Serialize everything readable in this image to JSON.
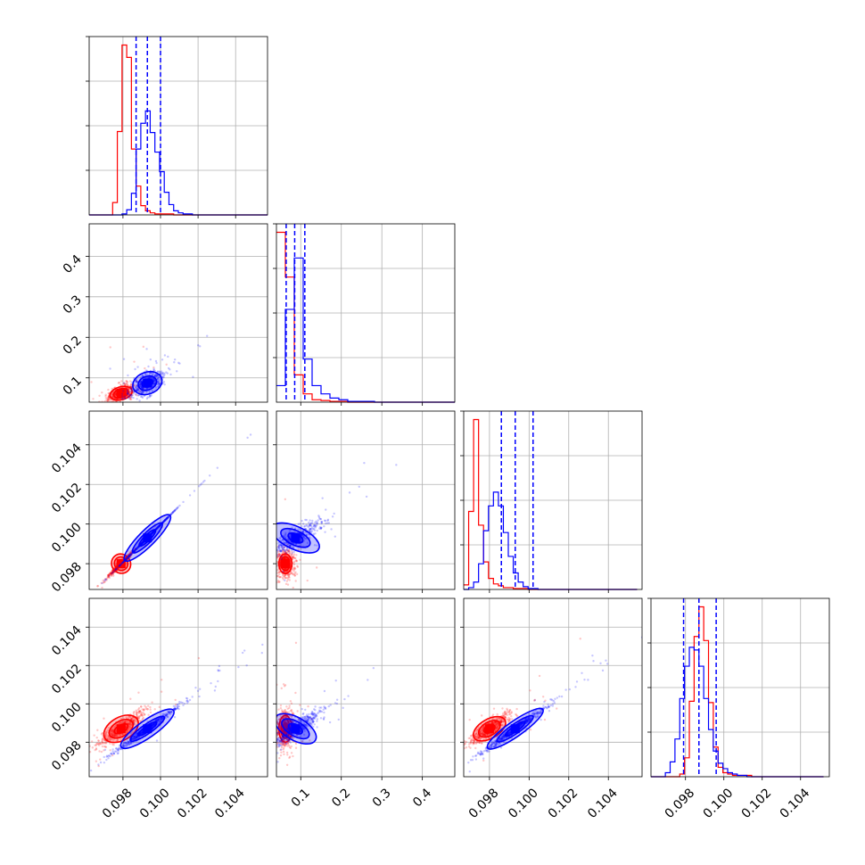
{
  "chart_data": {
    "type": "corner",
    "grid": true,
    "colors": {
      "series_red": "#ff0000",
      "series_blue": "#0000ff",
      "grid": "#b0b0b0",
      "axes": "#000000"
    },
    "series": [
      {
        "color_key": "series_red"
      },
      {
        "color_key": "series_blue"
      }
    ],
    "params": [
      {
        "xlim": [
          0.0962,
          0.1057
        ],
        "xticks": [
          "0.098",
          "0.100",
          "0.102",
          "0.104"
        ],
        "xtick_values": [
          0.098,
          0.1,
          0.102,
          0.104
        ]
      },
      {
        "xlim": [
          0.04,
          0.48
        ],
        "xticks": [
          "0.1",
          "0.2",
          "0.3",
          "0.4"
        ],
        "xtick_values": [
          0.1,
          0.2,
          0.3,
          0.4
        ]
      },
      {
        "xlim": [
          0.0967,
          0.1057
        ],
        "xticks": [
          "0.098",
          "0.100",
          "0.102",
          "0.104"
        ],
        "xtick_values": [
          0.098,
          0.1,
          0.102,
          0.104
        ]
      },
      {
        "xlim": [
          0.0962,
          0.1055
        ],
        "xticks": [
          "0.098",
          "0.100",
          "0.102",
          "0.104"
        ],
        "xtick_values": [
          0.098,
          0.1,
          0.102,
          0.104
        ]
      }
    ],
    "quantile_lines_blue": [
      [
        0.0987,
        0.0993,
        0.1
      ],
      [
        0.064,
        0.085,
        0.11
      ],
      [
        0.0986,
        0.0993,
        0.1002
      ],
      [
        0.0979,
        0.0987,
        0.0996
      ]
    ],
    "histograms": [
      {
        "param": 0,
        "bin_edges": [
          0.0962,
          0.09645,
          0.0967,
          0.09695,
          0.0972,
          0.09745,
          0.0977,
          0.09795,
          0.0982,
          0.09845,
          0.0987,
          0.09895,
          0.0992,
          0.09945,
          0.0997,
          0.09995,
          0.1002,
          0.10045,
          0.1007,
          0.10095,
          0.1012,
          0.10145,
          0.1017,
          0.10195,
          0.1022,
          0.10245,
          0.1027,
          0.10295,
          0.1032,
          0.10345,
          0.1037,
          0.10395,
          0.1042,
          0.10445,
          0.1047,
          0.10495,
          0.1052,
          0.10545,
          0.1057
        ],
        "red": [
          0,
          0,
          0,
          0,
          0,
          12,
          81,
          165,
          153,
          64,
          28,
          9,
          4,
          2,
          1,
          1,
          1,
          1,
          0,
          0,
          0,
          0,
          0,
          0,
          0,
          0,
          0,
          0,
          0,
          0,
          0,
          0,
          0,
          0,
          0,
          0,
          0,
          0
        ],
        "blue": [
          0,
          0,
          0,
          0,
          0,
          0,
          0,
          1,
          5,
          21,
          64,
          89,
          101,
          80,
          61,
          42,
          22,
          10,
          4,
          2,
          1,
          1,
          0,
          0,
          0,
          0,
          0,
          0,
          0,
          0,
          0,
          0,
          0,
          0,
          0,
          0,
          0,
          0
        ]
      },
      {
        "param": 1,
        "bin_edges": [
          0.04,
          0.062,
          0.084,
          0.106,
          0.128,
          0.15,
          0.172,
          0.194,
          0.216,
          0.238,
          0.26,
          0.282,
          0.304,
          0.326,
          0.348,
          0.37,
          0.392,
          0.414,
          0.436,
          0.458,
          0.48
        ],
        "red": [
          205,
          151,
          33,
          10,
          3,
          2,
          1,
          1,
          0,
          0,
          0,
          0,
          0,
          0,
          0,
          0,
          0,
          0,
          0,
          0
        ],
        "blue": [
          20,
          112,
          174,
          52,
          20,
          10,
          5,
          3,
          1,
          1,
          1,
          0,
          0,
          0,
          0,
          0,
          0,
          0,
          0,
          0
        ]
      },
      {
        "param": 2,
        "bin_edges": [
          0.0967,
          0.09695,
          0.0972,
          0.09745,
          0.0977,
          0.09795,
          0.0982,
          0.09845,
          0.0987,
          0.09895,
          0.0992,
          0.09945,
          0.0997,
          0.09995,
          0.1002,
          0.10045,
          0.1007,
          0.10095,
          0.1012,
          0.10145,
          0.1017,
          0.10195,
          0.1022,
          0.10245,
          0.1027,
          0.10295,
          0.1032,
          0.10345,
          0.1037,
          0.10395,
          0.1042,
          0.10445,
          0.1047,
          0.10495,
          0.1052,
          0.10545
        ],
        "red": [
          5,
          85,
          185,
          70,
          30,
          12,
          6,
          4,
          2,
          2,
          1,
          1,
          1,
          0,
          0,
          0,
          0,
          0,
          0,
          0,
          0,
          0,
          0,
          0,
          0,
          0,
          0,
          0,
          0,
          0,
          0,
          0,
          0,
          0,
          0
        ],
        "blue": [
          0,
          2,
          8,
          28,
          64,
          91,
          106,
          91,
          62,
          36,
          18,
          8,
          3,
          1,
          1,
          0,
          0,
          0,
          0,
          0,
          0,
          0,
          0,
          0,
          0,
          0,
          0,
          0,
          0,
          0,
          0,
          0,
          0,
          0,
          0
        ]
      },
      {
        "param": 3,
        "bin_edges": [
          0.0962,
          0.09645,
          0.0967,
          0.09695,
          0.0972,
          0.09745,
          0.0977,
          0.09795,
          0.0982,
          0.09845,
          0.0987,
          0.09895,
          0.0992,
          0.09945,
          0.0997,
          0.09995,
          0.1002,
          0.10045,
          0.1007,
          0.10095,
          0.1012,
          0.10145,
          0.1017,
          0.10195,
          0.1022,
          0.10245,
          0.1027,
          0.10295,
          0.1032,
          0.10345,
          0.1037,
          0.10395,
          0.1042,
          0.10445,
          0.1047,
          0.10495,
          0.1052
        ],
        "red": [
          0,
          0,
          0,
          0,
          0,
          0,
          2,
          14,
          56,
          104,
          126,
          101,
          55,
          22,
          7,
          3,
          2,
          1,
          1,
          1,
          1,
          0,
          0,
          0,
          0,
          0,
          0,
          0,
          0,
          0,
          0,
          0,
          0,
          0,
          0,
          0
        ],
        "blue": [
          0,
          0,
          0,
          3,
          11,
          28,
          58,
          82,
          96,
          94,
          82,
          58,
          35,
          19,
          10,
          6,
          3,
          2,
          1,
          1,
          0,
          0,
          0,
          0,
          0,
          0,
          0,
          0,
          0,
          0,
          0,
          0,
          0,
          0,
          0,
          0
        ]
      }
    ],
    "scatter_panels": [
      {
        "xparam": 0,
        "yparam": 1,
        "ylim": [
          0.04,
          0.48
        ],
        "yticks": [
          "0.1",
          "0.2",
          "0.3",
          "0.4"
        ],
        "ytick_values": [
          0.1,
          0.2,
          0.3,
          0.4
        ],
        "red_center": [
          0.0979,
          0.062
        ],
        "red_contours": [
          [
            0.0002,
            0.006
          ],
          [
            0.0004,
            0.011
          ],
          [
            0.0006,
            0.016
          ]
        ],
        "red_contour_angle": 15,
        "blue_center": [
          0.0993,
          0.087
        ],
        "blue_contours": [
          [
            0.0003,
            0.009
          ],
          [
            0.0005,
            0.017
          ],
          [
            0.0008,
            0.027
          ]
        ],
        "blue_contour_angle": 20
      },
      {
        "xparam": 0,
        "yparam": 2,
        "ylim": [
          0.0967,
          0.1057
        ],
        "yticks": [
          "0.098",
          "0.100",
          "0.102",
          "0.104"
        ],
        "ytick_values": [
          0.098,
          0.1,
          0.102,
          0.104
        ],
        "red_center": [
          0.0979,
          0.098
        ],
        "red_contours": [
          [
            0.0002,
            0.0002
          ],
          [
            0.00035,
            0.00035
          ],
          [
            0.0005,
            0.0005
          ]
        ],
        "red_contour_angle": 40,
        "blue_center": [
          0.0993,
          0.0993
        ],
        "blue_contours": [
          [
            0.0006,
            0.00015
          ],
          [
            0.0011,
            0.00025
          ],
          [
            0.0017,
            0.0004
          ]
        ],
        "blue_contour_angle": 45
      },
      {
        "xparam": 0,
        "yparam": 3,
        "ylim": [
          0.0962,
          0.1055
        ],
        "yticks": [
          "0.098",
          "0.100",
          "0.102",
          "0.104"
        ],
        "ytick_values": [
          0.098,
          0.1,
          0.102,
          0.104
        ],
        "red_center": [
          0.0979,
          0.0987
        ],
        "red_contours": [
          [
            0.0004,
            0.0002
          ],
          [
            0.0007,
            0.0004
          ],
          [
            0.001,
            0.0006
          ]
        ],
        "red_contour_angle": 30,
        "blue_center": [
          0.0993,
          0.0987
        ],
        "blue_contours": [
          [
            0.0006,
            0.00015
          ],
          [
            0.0011,
            0.00025
          ],
          [
            0.0017,
            0.00045
          ]
        ],
        "blue_contour_angle": 35
      },
      {
        "xparam": 1,
        "yparam": 2,
        "ylim": [
          0.0967,
          0.1057
        ],
        "yticks": [],
        "ytick_values": [],
        "red_center": [
          0.062,
          0.098
        ],
        "red_contours": [
          [
            0.006,
            0.0002
          ],
          [
            0.011,
            0.00035
          ],
          [
            0.016,
            0.0005
          ]
        ],
        "red_contour_angle": 0,
        "blue_center": [
          0.087,
          0.0993
        ],
        "blue_contours": [
          [
            0.01,
            0.0004
          ],
          [
            0.018,
            0.0008
          ],
          [
            0.028,
            0.0013
          ]
        ],
        "blue_contour_angle": 65
      },
      {
        "xparam": 1,
        "yparam": 3,
        "ylim": [
          0.0962,
          0.1055
        ],
        "yticks": [],
        "ytick_values": [],
        "red_center": [
          0.062,
          0.0987
        ],
        "red_contours": [
          [
            0.006,
            0.0003
          ],
          [
            0.011,
            0.0005
          ],
          [
            0.016,
            0.0007
          ]
        ],
        "red_contour_angle": 0,
        "blue_center": [
          0.087,
          0.0987
        ],
        "blue_contours": [
          [
            0.01,
            0.0004
          ],
          [
            0.018,
            0.0008
          ],
          [
            0.028,
            0.0012
          ]
        ],
        "blue_contour_angle": 60
      },
      {
        "xparam": 2,
        "yparam": 3,
        "ylim": [
          0.0962,
          0.1055
        ],
        "yticks": [],
        "ytick_values": [],
        "red_center": [
          0.098,
          0.0987
        ],
        "red_contours": [
          [
            0.0003,
            0.0002
          ],
          [
            0.0006,
            0.00035
          ],
          [
            0.0009,
            0.0005
          ]
        ],
        "red_contour_angle": 30,
        "blue_center": [
          0.0993,
          0.0987
        ],
        "blue_contours": [
          [
            0.0006,
            0.00015
          ],
          [
            0.0011,
            0.00025
          ],
          [
            0.0017,
            0.0004
          ]
        ],
        "blue_contour_angle": 35
      }
    ]
  }
}
